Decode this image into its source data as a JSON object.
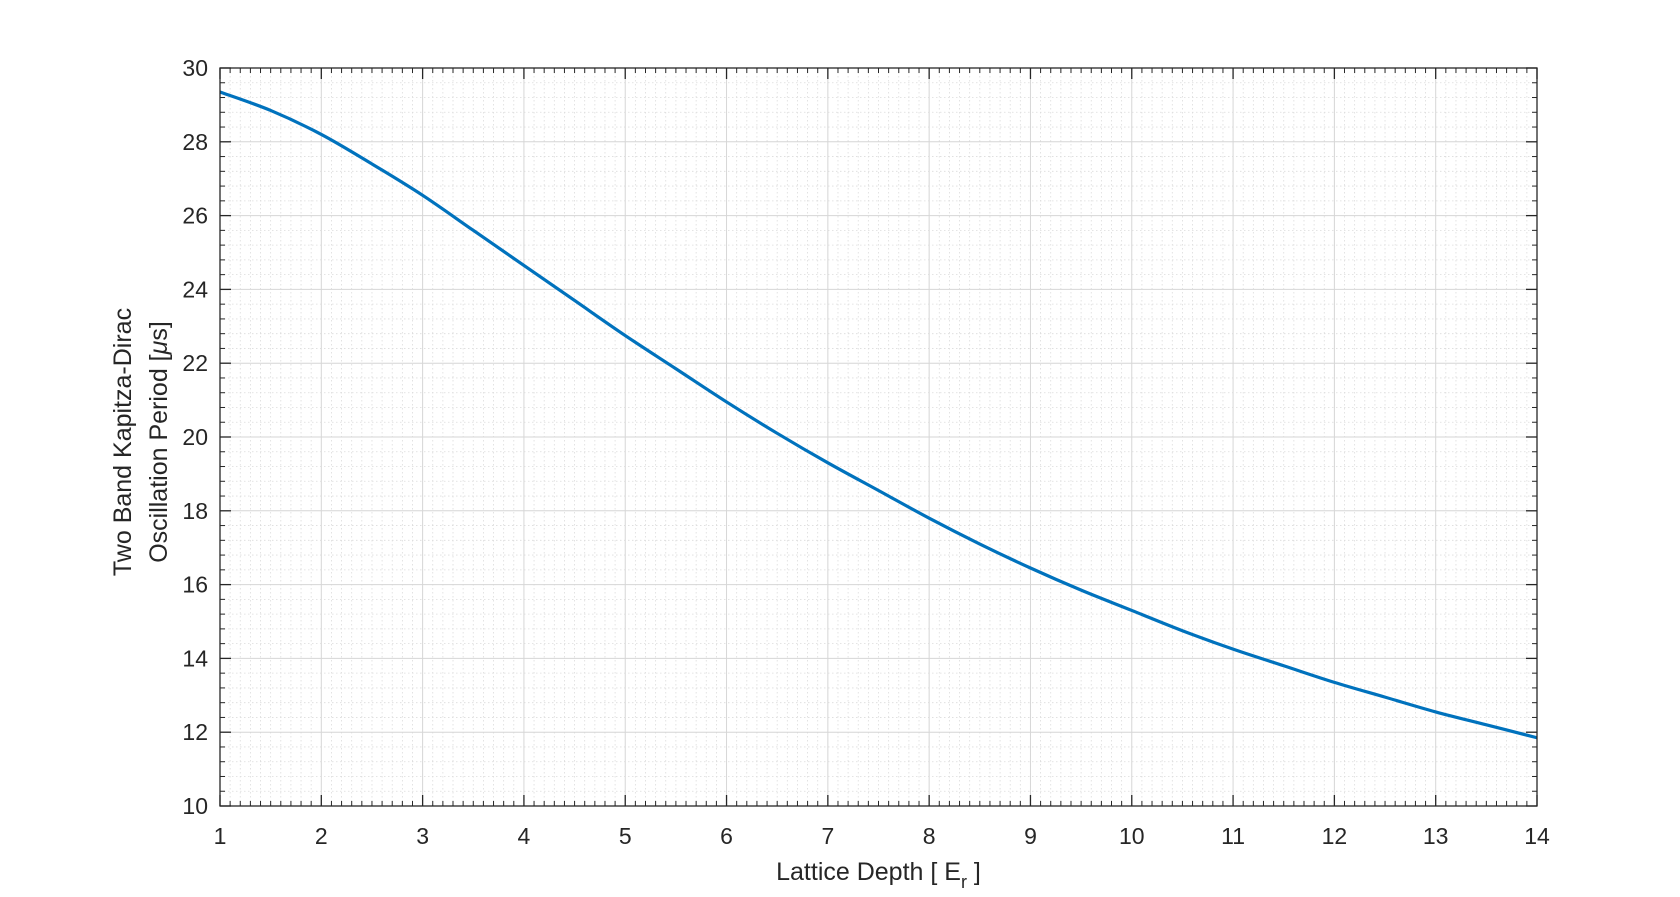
{
  "chart_data": {
    "type": "line",
    "title": "",
    "xlabel": "Lattice Depth [ E",
    "xlabel_subscript": "r",
    "xlabel_suffix": " ]",
    "ylabel_line1": "Two Band Kapitza-Dirac",
    "ylabel_line2_prefix": "Oscillation Period [",
    "ylabel_line2_mu": "μ",
    "ylabel_line2_suffix": "s]",
    "xlim": [
      1,
      14
    ],
    "ylim": [
      10,
      30
    ],
    "x_ticks": [
      1,
      2,
      3,
      4,
      5,
      6,
      7,
      8,
      9,
      10,
      11,
      12,
      13,
      14
    ],
    "y_ticks": [
      10,
      12,
      14,
      16,
      18,
      20,
      22,
      24,
      26,
      28,
      30
    ],
    "x_tick_labels": [
      "1",
      "2",
      "3",
      "4",
      "5",
      "6",
      "7",
      "8",
      "9",
      "10",
      "11",
      "12",
      "13",
      "14"
    ],
    "y_tick_labels": [
      "10",
      "12",
      "14",
      "16",
      "18",
      "20",
      "22",
      "24",
      "26",
      "28",
      "30"
    ],
    "grid": true,
    "minor_grid": true,
    "line_color": "#0072BD",
    "series": [
      {
        "x": [
          1,
          1.5,
          2,
          2.5,
          3,
          3.5,
          4,
          4.5,
          5,
          5.5,
          6,
          6.5,
          7,
          7.5,
          8,
          8.5,
          9,
          9.5,
          10,
          10.5,
          11,
          11.5,
          12,
          12.5,
          13,
          13.5,
          14
        ],
        "y": [
          29.35,
          28.85,
          28.2,
          27.4,
          26.55,
          25.6,
          24.65,
          23.7,
          22.75,
          21.85,
          20.95,
          20.1,
          19.3,
          18.55,
          17.8,
          17.1,
          16.45,
          15.85,
          15.3,
          14.75,
          14.25,
          13.8,
          13.35,
          12.95,
          12.55,
          12.2,
          11.85
        ]
      }
    ]
  }
}
